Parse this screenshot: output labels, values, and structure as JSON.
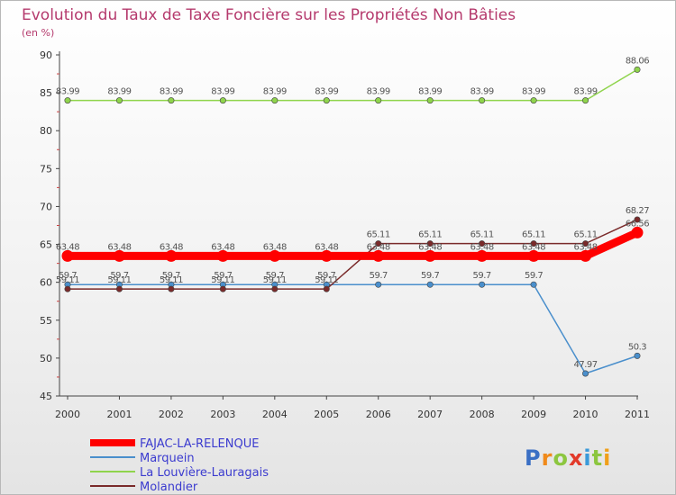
{
  "chart_data": {
    "type": "line",
    "title": "Evolution du Taux de Taxe Foncière sur les Propriétés Non Bâties",
    "subtitle": "(en %)",
    "x": [
      "2000",
      "2001",
      "2002",
      "2003",
      "2004",
      "2005",
      "2006",
      "2007",
      "2008",
      "2009",
      "2010",
      "2011"
    ],
    "ylim": [
      45,
      90
    ],
    "yticks": [
      45,
      50,
      55,
      60,
      65,
      70,
      75,
      80,
      85,
      90
    ],
    "grid": false,
    "legend_position": "bottom-left",
    "series": [
      {
        "name": "FAJAC-LA-RELENQUE",
        "color": "#ff0000",
        "values": [
          63.48,
          63.48,
          63.48,
          63.48,
          63.48,
          63.48,
          63.48,
          63.48,
          63.48,
          63.48,
          63.48,
          66.56
        ],
        "labels": [
          "63.48",
          "63.48",
          "63.48",
          "63.48",
          "63.48",
          "63.48",
          "63.48",
          "63.48",
          "63.48",
          "63.48",
          "63.48",
          "66.56"
        ]
      },
      {
        "name": "Marquein",
        "color": "#4a8fcc",
        "values": [
          59.7,
          59.7,
          59.7,
          59.7,
          59.7,
          59.7,
          59.7,
          59.7,
          59.7,
          59.7,
          47.97,
          50.3
        ],
        "labels": [
          "59.7",
          "59.7",
          "59.7",
          "59.7",
          "59.7",
          "59.7",
          "59.7",
          "59.7",
          "59.7",
          "59.7",
          "47.97",
          "50.3"
        ]
      },
      {
        "name": "La Louvière-Lauragais",
        "color": "#8fd44c",
        "values": [
          83.99,
          83.99,
          83.99,
          83.99,
          83.99,
          83.99,
          83.99,
          83.99,
          83.99,
          83.99,
          83.99,
          88.06
        ],
        "labels": [
          "83.99",
          "83.99",
          "83.99",
          "83.99",
          "83.99",
          "83.99",
          "83.99",
          "83.99",
          "83.99",
          "83.99",
          "83.99",
          "88.06"
        ]
      },
      {
        "name": "Molandier",
        "color": "#7a2a2a",
        "values": [
          59.11,
          59.11,
          59.11,
          59.11,
          59.11,
          59.11,
          65.11,
          65.11,
          65.11,
          65.11,
          65.11,
          68.27
        ],
        "labels": [
          "59.11",
          "59.11",
          "59.11",
          "59.11",
          "59.11",
          "59.11",
          "65.11",
          "65.11",
          "65.11",
          "65.11",
          "65.11",
          "68.27"
        ]
      }
    ]
  },
  "logo": {
    "text": "Proxiti"
  }
}
